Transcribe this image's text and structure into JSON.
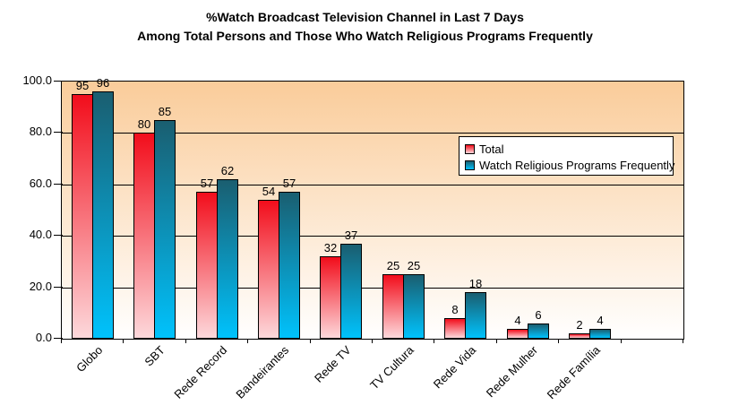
{
  "title": {
    "line1": "%Watch Broadcast Television Channel in Last 7 Days",
    "line2": "Among Total Persons and Those Who Watch Religious Programs Frequently"
  },
  "chart_data": {
    "type": "bar",
    "categories": [
      "Globo",
      "SBT",
      "Rede Record",
      "Bandeirantes",
      "Rede TV",
      "TV Cultura",
      "Rede Vida",
      "Rede Mulher",
      "Rede Família"
    ],
    "series": [
      {
        "name": "Total",
        "values": [
          95,
          80,
          57,
          54,
          32,
          25,
          8,
          4,
          2
        ],
        "color_top": "#f20d1b",
        "color_bottom": "#fdd8db"
      },
      {
        "name": "Watch Religious Programs Frequently",
        "values": [
          96,
          85,
          62,
          57,
          37,
          25,
          18,
          6,
          4
        ],
        "color_top": "#1a5e70",
        "color_bottom": "#00c2fc"
      }
    ],
    "ylim": [
      0,
      100
    ],
    "ytick_labels": [
      "100.0",
      "80.0",
      "60.0",
      "40.0",
      "20.0",
      "0.0"
    ],
    "gridline_values": [
      20,
      40,
      60,
      80
    ],
    "grid": true,
    "legend_position": "inside-right",
    "plot_bg_top": "#facc9a",
    "plot_bg_bottom": "#ffffff",
    "axis_color": "#000000",
    "empty_trailing_slots": 1
  }
}
